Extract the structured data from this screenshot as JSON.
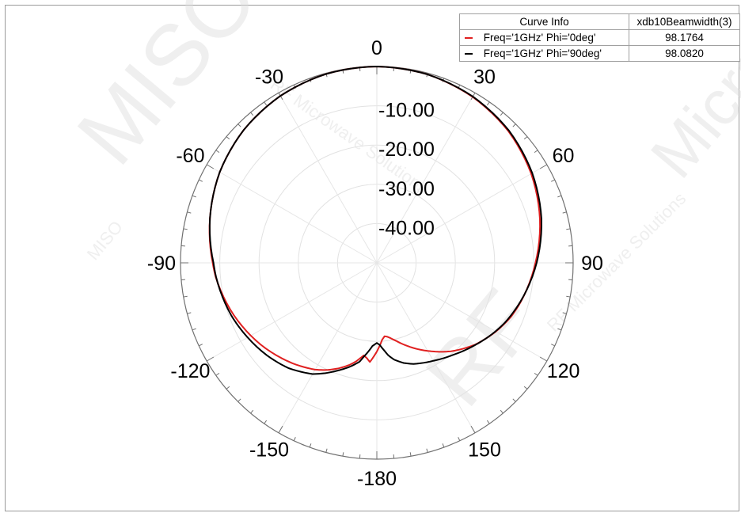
{
  "chart_data": {
    "type": "polar",
    "theta_ticks": [
      0,
      30,
      60,
      90,
      120,
      150,
      180,
      -150,
      -120,
      -90,
      -60,
      -30
    ],
    "theta_tick_labels": [
      "0",
      "30",
      "60",
      "90",
      "120",
      "150",
      "-180",
      "-150",
      "-120",
      "-90",
      "-60",
      "-30"
    ],
    "r_range": [
      -50,
      0
    ],
    "r_tick_labels": [
      "-10.00",
      "-20.00",
      "-30.00",
      "-40.00"
    ],
    "grid": true,
    "series": [
      {
        "name": "Freq='1GHz' Phi='0deg'",
        "color": "#e02020",
        "theta_deg": [
          0,
          15,
          30,
          45,
          60,
          75,
          90,
          105,
          112,
          120,
          130,
          140,
          150,
          160,
          166,
          170,
          172,
          174,
          176,
          180,
          184,
          186,
          188,
          190,
          192,
          195,
          200,
          205,
          210,
          220,
          235,
          250,
          265,
          270,
          285,
          300,
          315,
          330,
          345,
          360
        ],
        "r_db": [
          0,
          -0.3,
          -1.2,
          -2.6,
          -4.6,
          -7.0,
          -9.6,
          -12.0,
          -13.2,
          -15.0,
          -17.5,
          -20.6,
          -24.1,
          -27.5,
          -29.5,
          -30.6,
          -31.0,
          -31.2,
          -30.4,
          -27.4,
          -24.7,
          -25.6,
          -26.2,
          -25.3,
          -24.3,
          -23.1,
          -21.4,
          -19.9,
          -18.6,
          -16.6,
          -13.8,
          -11.2,
          -8.8,
          -8.2,
          -6.0,
          -3.8,
          -2.1,
          -0.9,
          -0.2,
          0
        ]
      },
      {
        "name": "Freq='1GHz' Phi='90deg'",
        "color": "#000000",
        "theta_deg": [
          0,
          15,
          30,
          45,
          60,
          75,
          90,
          105,
          115,
          120,
          130,
          140,
          150,
          160,
          165,
          170,
          173,
          175,
          178,
          180,
          183,
          185,
          188,
          190,
          195,
          200,
          205,
          210,
          220,
          230,
          245,
          250,
          265,
          270,
          285,
          300,
          315,
          330,
          345,
          360
        ],
        "r_db": [
          0,
          -0.3,
          -1.1,
          -2.4,
          -4.3,
          -6.6,
          -9.3,
          -12.1,
          -14.0,
          -15.1,
          -17.4,
          -19.5,
          -21.2,
          -22.6,
          -23.6,
          -25.0,
          -26.3,
          -27.5,
          -29.1,
          -29.6,
          -28.8,
          -27.6,
          -25.8,
          -24.4,
          -22.5,
          -20.8,
          -19.0,
          -17.3,
          -15.0,
          -13.4,
          -11.3,
          -10.6,
          -8.9,
          -8.4,
          -6.0,
          -3.8,
          -2.1,
          -0.9,
          -0.2,
          0
        ]
      }
    ]
  },
  "legend": {
    "header_name": "Curve Info",
    "header_value": "xdb10Beamwidth(3)",
    "rows": [
      {
        "name": "Freq='1GHz' Phi='0deg'",
        "value": "98.1764",
        "color": "#e02020"
      },
      {
        "name": "Freq='1GHz' Phi='90deg'",
        "value": "98.0820",
        "color": "#000000"
      }
    ]
  },
  "watermark": {
    "texts": [
      "MISO",
      "RF Microwave Solutions",
      "RF",
      "Microwave",
      "MISO",
      "RF Microwave Solutions"
    ],
    "color": "#dcdcdc"
  }
}
